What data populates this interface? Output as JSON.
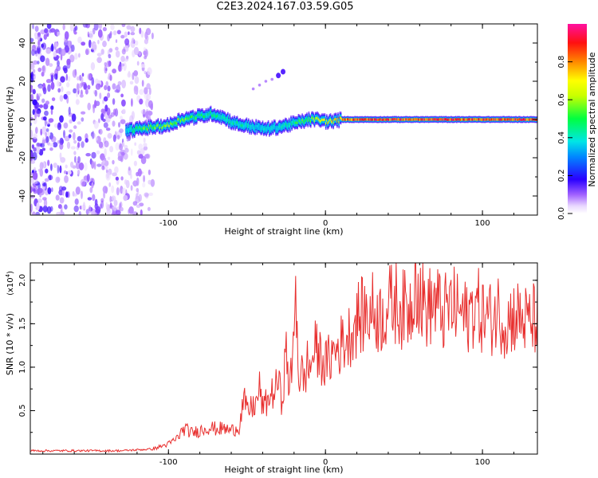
{
  "chart_data": [
    {
      "type": "heatmap",
      "title": "C2E3.2024.167.03.59.G05",
      "xlabel": "Height of straight line (km)",
      "ylabel": "Frequency (Hz)",
      "xlim": [
        -188,
        135
      ],
      "ylim": [
        -50,
        50
      ],
      "x_ticks": [
        -100,
        0,
        100
      ],
      "x_tick_labels": [
        "-100",
        "0",
        "100"
      ],
      "y_ticks": [
        -40,
        -20,
        0,
        20,
        40
      ],
      "y_tick_labels": [
        "-40",
        "-20",
        "0",
        "20",
        "40"
      ],
      "grid": false,
      "noise_region": {
        "x_range": [
          -188,
          -110
        ],
        "y_range": [
          -50,
          50
        ]
      },
      "ridge": {
        "x": [
          -127,
          -120,
          -110,
          -100,
          -92,
          -85,
          -78,
          -72,
          -65,
          -58,
          -52,
          -45,
          -38,
          -30,
          -25,
          -20,
          -15,
          -10,
          -5,
          0,
          5,
          10,
          20,
          40,
          60,
          80,
          100,
          120,
          135
        ],
        "freq_hz": [
          -6,
          -5,
          -4,
          -3,
          0,
          1,
          2,
          3,
          1,
          -2,
          -3,
          -4,
          -5,
          -4,
          -3,
          -2,
          -1,
          0,
          0,
          -1,
          -1,
          0,
          0,
          0,
          0,
          0,
          0,
          0,
          0
        ],
        "amplitude": [
          0.4,
          0.55,
          0.6,
          0.65,
          0.6,
          0.55,
          0.5,
          0.5,
          0.45,
          0.45,
          0.45,
          0.4,
          0.4,
          0.4,
          0.45,
          0.5,
          0.55,
          0.6,
          0.7,
          0.75,
          0.8,
          0.85,
          0.9,
          0.92,
          0.92,
          0.92,
          0.92,
          0.92,
          0.92
        ]
      },
      "side_feature": {
        "x": [
          -46,
          -42,
          -38,
          -34,
          -30,
          -27
        ],
        "freq_hz": [
          16,
          18,
          20,
          21,
          23,
          25
        ]
      },
      "colorbar": {
        "label": "Normalized spectral amplitude",
        "range": [
          0,
          1
        ],
        "ticks": [
          0.0,
          0.2,
          0.4,
          0.6,
          0.8
        ],
        "tick_labels": [
          "0.0",
          "0.2",
          "0.4",
          "0.6",
          "0.8"
        ]
      }
    },
    {
      "type": "line",
      "xlabel": "Height of straight line (km)",
      "ylabel": "SNR (10 * v/v)",
      "scale_label": "(x10",
      "scale_exp": "4",
      "scale_close": ")",
      "xlim": [
        -188,
        135
      ],
      "ylim": [
        0,
        2.2
      ],
      "x_ticks": [
        -100,
        0,
        100
      ],
      "x_tick_labels": [
        "-100",
        "0",
        "100"
      ],
      "y_ticks": [
        0.5,
        1.0,
        1.5,
        2.0
      ],
      "y_tick_labels": [
        "0.5",
        "1.0",
        "1.5",
        "2.0"
      ],
      "grid": false,
      "color": "#e8302f",
      "series": [
        {
          "name": "SNR",
          "x": [
            -188,
            -170,
            -150,
            -130,
            -120,
            -110,
            -105,
            -100,
            -95,
            -90,
            -85,
            -80,
            -75,
            -70,
            -65,
            -60,
            -55,
            -52,
            -50,
            -47,
            -44,
            -42,
            -40,
            -37,
            -35,
            -32,
            -30,
            -28,
            -25,
            -23,
            -21,
            -19,
            -17,
            -15,
            -13,
            -12,
            -10,
            -7,
            -5,
            -3,
            0,
            5,
            10,
            15,
            20,
            25,
            30,
            35,
            40,
            45,
            50,
            55,
            57,
            60,
            65,
            70,
            75,
            80,
            85,
            90,
            95,
            100,
            105,
            110,
            115,
            120,
            125,
            130,
            135
          ],
          "values": [
            0.04,
            0.04,
            0.04,
            0.04,
            0.05,
            0.06,
            0.09,
            0.12,
            0.18,
            0.3,
            0.25,
            0.28,
            0.32,
            0.3,
            0.3,
            0.28,
            0.32,
            0.65,
            0.5,
            0.55,
            0.6,
            0.78,
            0.55,
            0.62,
            0.7,
            0.75,
            0.9,
            0.6,
            1.2,
            0.8,
            1.0,
            2.05,
            0.9,
            0.95,
            0.85,
            1.1,
            1.0,
            1.25,
            1.2,
            1.15,
            1.05,
            1.2,
            1.3,
            1.4,
            1.6,
            1.65,
            1.7,
            1.62,
            1.75,
            1.8,
            1.7,
            1.75,
            2.18,
            1.85,
            1.72,
            1.8,
            1.65,
            1.75,
            1.7,
            1.6,
            1.78,
            1.65,
            1.6,
            1.7,
            1.55,
            1.65,
            1.6,
            1.55,
            1.62
          ]
        }
      ]
    }
  ]
}
